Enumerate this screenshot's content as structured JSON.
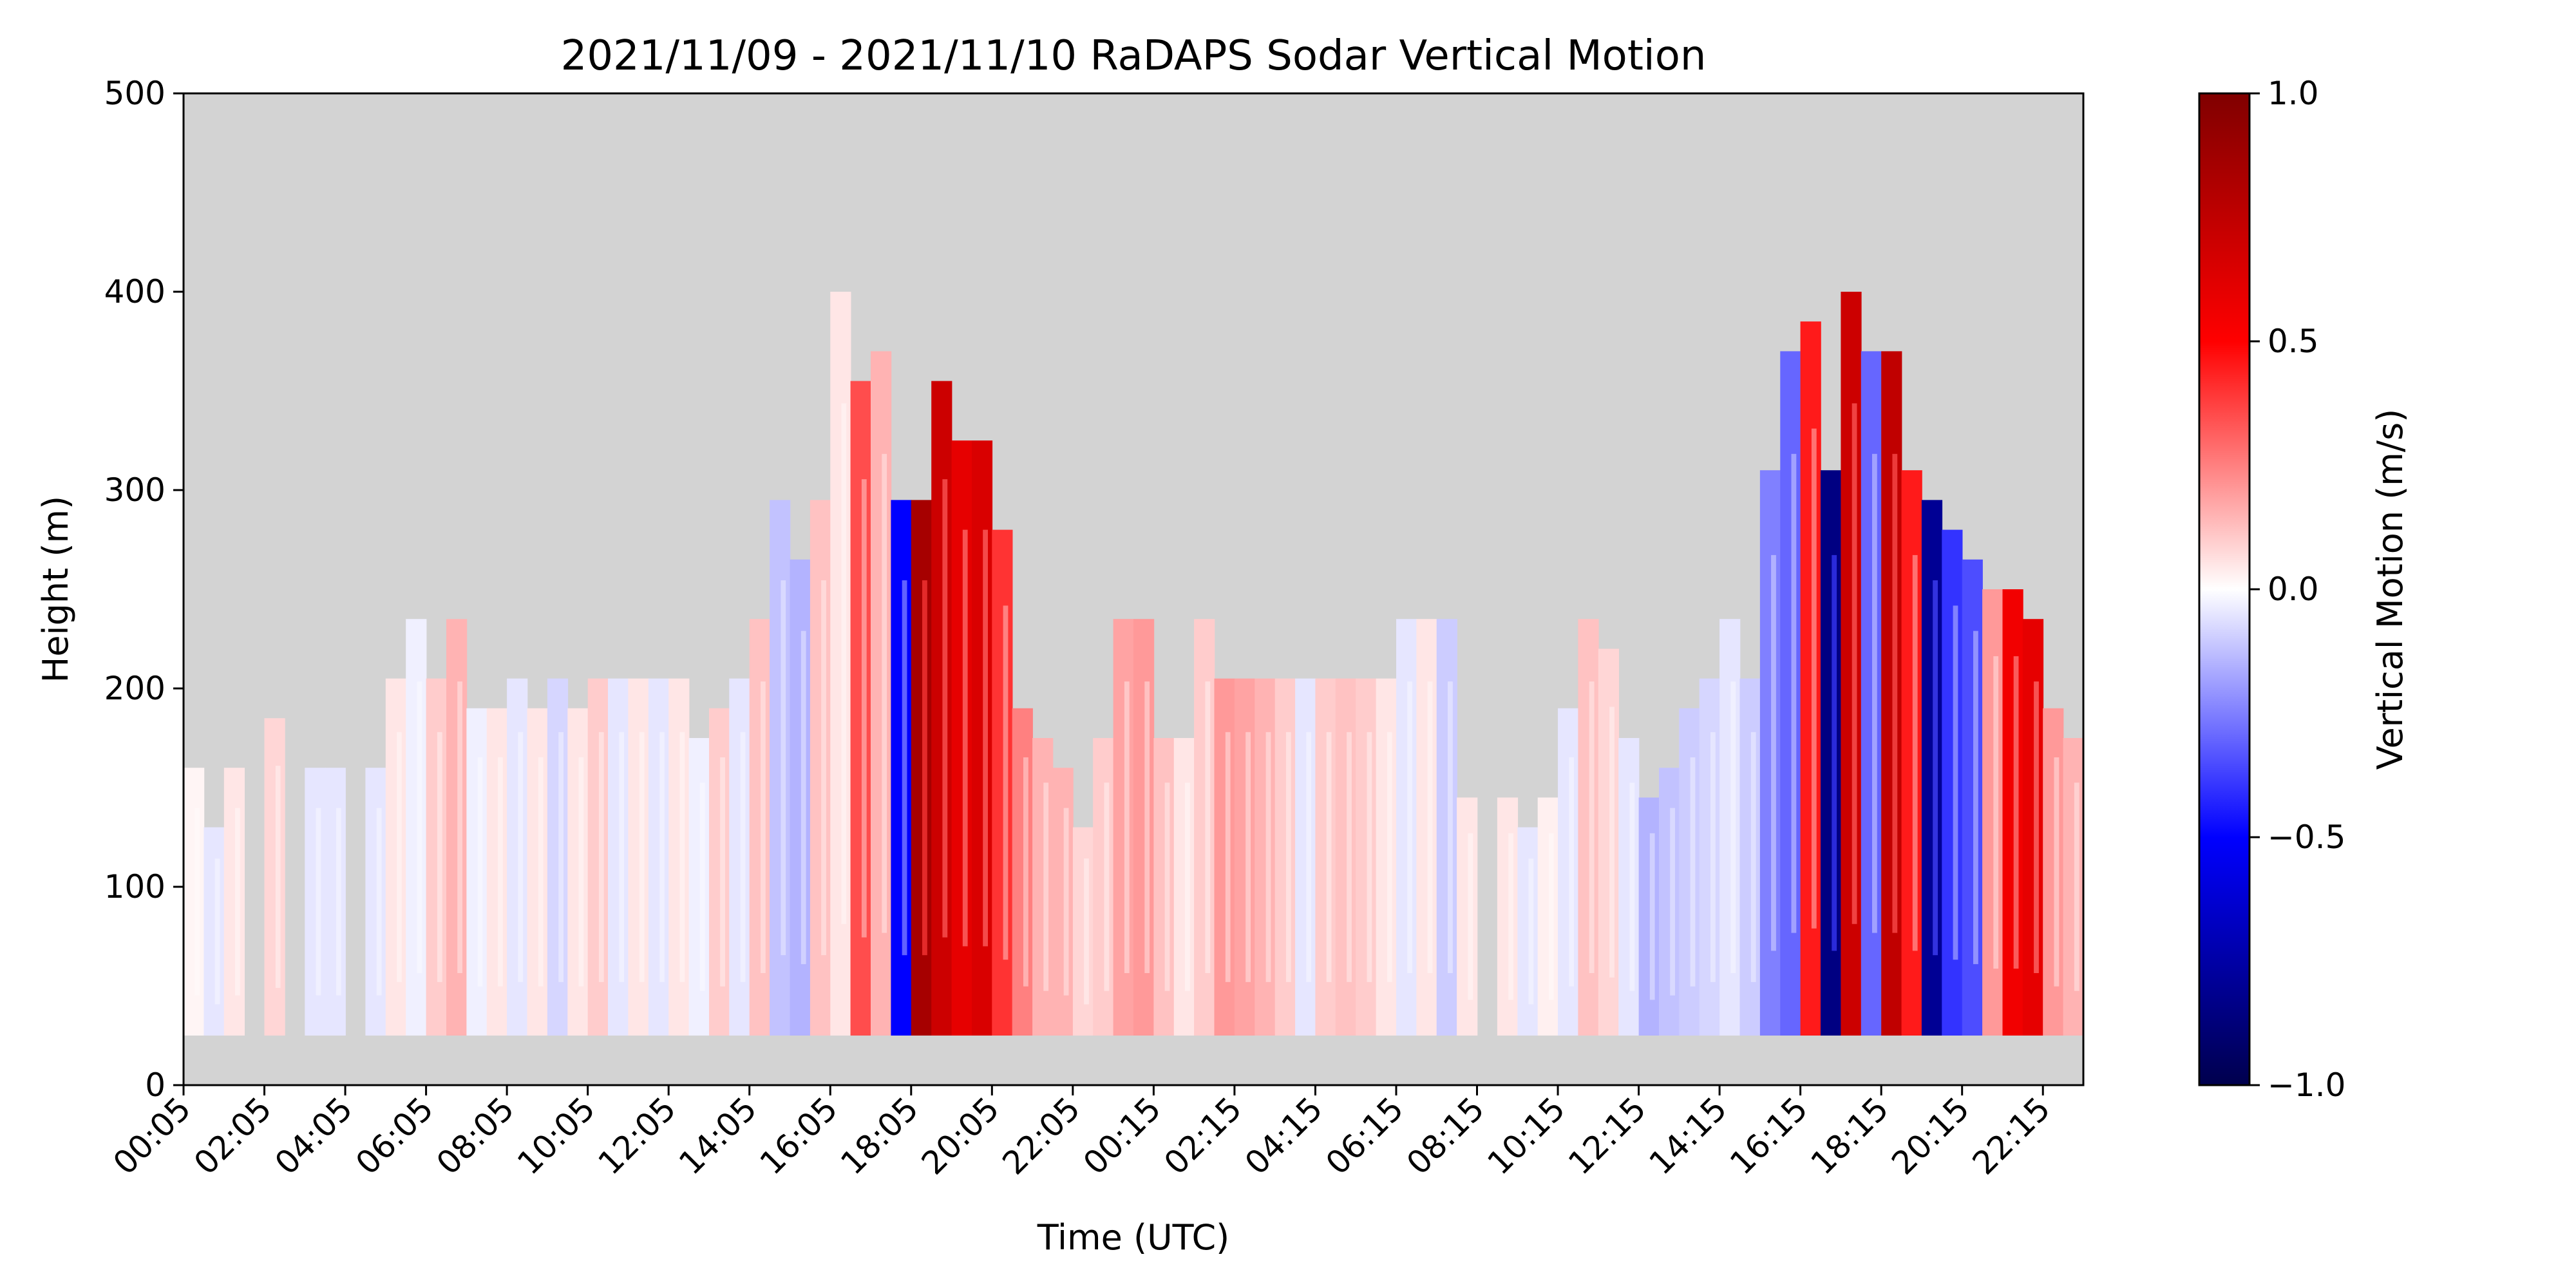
{
  "chart_data": {
    "type": "heatmap",
    "title": "2021/11/09 - 2021/11/10 RaDAPS Sodar Vertical Motion",
    "xlabel": "Time (UTC)",
    "ylabel": "Height (m)",
    "x_tick_labels": [
      "00:05",
      "02:05",
      "04:05",
      "06:05",
      "08:05",
      "10:05",
      "12:05",
      "14:05",
      "16:05",
      "18:05",
      "20:05",
      "22:05",
      "00:15",
      "02:15",
      "04:15",
      "06:15",
      "08:15",
      "10:15",
      "12:15",
      "14:15",
      "16:15",
      "18:15",
      "20:15",
      "22:15"
    ],
    "y_ticks": [
      0,
      100,
      200,
      300,
      400,
      500
    ],
    "ylim": [
      0,
      500
    ],
    "missing_data_color": "#d3d3d3",
    "colorbar": {
      "label": "Vertical Motion (m/s)",
      "colormap": "seismic",
      "ticks": [
        1.0,
        0.5,
        0.0,
        -0.5,
        -1.0
      ],
      "tick_labels": [
        "1.0",
        "0.5",
        "0.0",
        "−0.5",
        "−1.0"
      ],
      "range": [
        -1.0,
        1.0
      ],
      "colors": {
        "max": "#800000",
        "positive": "#ff0000",
        "zero": "#ffffff",
        "negative": "#0000ff",
        "min": "#00004d"
      }
    },
    "data_bottom_height": 25,
    "columns": [
      {
        "hour": 0.0,
        "top": 160,
        "w": 0.02
      },
      {
        "hour": 0.5,
        "top": 130,
        "w": -0.05
      },
      {
        "hour": 1.0,
        "top": 160,
        "w": 0.05
      },
      {
        "hour": 1.5,
        "top": null,
        "w": null
      },
      {
        "hour": 2.0,
        "top": 185,
        "w": 0.08
      },
      {
        "hour": 2.5,
        "top": null,
        "w": null
      },
      {
        "hour": 3.0,
        "top": 160,
        "w": -0.05
      },
      {
        "hour": 3.5,
        "top": 160,
        "w": -0.05
      },
      {
        "hour": 4.0,
        "top": null,
        "w": null
      },
      {
        "hour": 4.5,
        "top": 160,
        "w": -0.05
      },
      {
        "hour": 5.0,
        "top": 205,
        "w": 0.05
      },
      {
        "hour": 5.5,
        "top": 235,
        "w": -0.03
      },
      {
        "hour": 6.0,
        "top": 205,
        "w": 0.1
      },
      {
        "hour": 6.5,
        "top": 235,
        "w": 0.15
      },
      {
        "hour": 7.0,
        "top": 190,
        "w": -0.03
      },
      {
        "hour": 7.5,
        "top": 190,
        "w": 0.05
      },
      {
        "hour": 8.0,
        "top": 205,
        "w": -0.05
      },
      {
        "hour": 8.5,
        "top": 190,
        "w": 0.05
      },
      {
        "hour": 9.0,
        "top": 205,
        "w": -0.08
      },
      {
        "hour": 9.5,
        "top": 190,
        "w": 0.05
      },
      {
        "hour": 10.0,
        "top": 205,
        "w": 0.1
      },
      {
        "hour": 10.5,
        "top": 205,
        "w": -0.05
      },
      {
        "hour": 11.0,
        "top": 205,
        "w": 0.05
      },
      {
        "hour": 11.5,
        "top": 205,
        "w": -0.05
      },
      {
        "hour": 12.0,
        "top": 205,
        "w": 0.05
      },
      {
        "hour": 12.5,
        "top": 175,
        "w": -0.03
      },
      {
        "hour": 13.0,
        "top": 190,
        "w": 0.1
      },
      {
        "hour": 13.5,
        "top": 205,
        "w": -0.05
      },
      {
        "hour": 14.0,
        "top": 235,
        "w": 0.12
      },
      {
        "hour": 14.5,
        "top": 295,
        "w": -0.12
      },
      {
        "hour": 15.0,
        "top": 265,
        "w": -0.15
      },
      {
        "hour": 15.5,
        "top": 295,
        "w": 0.12
      },
      {
        "hour": 16.0,
        "top": 400,
        "w": 0.05
      },
      {
        "hour": 16.5,
        "top": 355,
        "w": 0.35
      },
      {
        "hour": 17.0,
        "top": 370,
        "w": 0.15
      },
      {
        "hour": 17.5,
        "top": 295,
        "w": -0.5
      },
      {
        "hour": 18.0,
        "top": 295,
        "w": 0.85
      },
      {
        "hour": 18.5,
        "top": 355,
        "w": 0.7
      },
      {
        "hour": 19.0,
        "top": 325,
        "w": 0.6
      },
      {
        "hour": 19.5,
        "top": 325,
        "w": 0.65
      },
      {
        "hour": 20.0,
        "top": 280,
        "w": 0.4
      },
      {
        "hour": 20.5,
        "top": 190,
        "w": 0.25
      },
      {
        "hour": 21.0,
        "top": 175,
        "w": 0.15
      },
      {
        "hour": 21.5,
        "top": 160,
        "w": 0.15
      },
      {
        "hour": 22.0,
        "top": 130,
        "w": 0.08
      },
      {
        "hour": 22.5,
        "top": 175,
        "w": 0.1
      },
      {
        "hour": 23.0,
        "top": 235,
        "w": 0.18
      },
      {
        "hour": 23.5,
        "top": 235,
        "w": 0.2
      },
      {
        "hour": 24.0,
        "top": 175,
        "w": 0.12
      },
      {
        "hour": 24.5,
        "top": 175,
        "w": 0.05
      },
      {
        "hour": 25.0,
        "top": 235,
        "w": 0.1
      },
      {
        "hour": 25.5,
        "top": 205,
        "w": 0.2
      },
      {
        "hour": 26.0,
        "top": 205,
        "w": 0.18
      },
      {
        "hour": 26.5,
        "top": 205,
        "w": 0.15
      },
      {
        "hour": 27.0,
        "top": 205,
        "w": 0.1
      },
      {
        "hour": 27.5,
        "top": 205,
        "w": -0.05
      },
      {
        "hour": 28.0,
        "top": 205,
        "w": 0.1
      },
      {
        "hour": 28.5,
        "top": 205,
        "w": 0.12
      },
      {
        "hour": 29.0,
        "top": 205,
        "w": 0.1
      },
      {
        "hour": 29.5,
        "top": 205,
        "w": 0.05
      },
      {
        "hour": 30.0,
        "top": 235,
        "w": -0.05
      },
      {
        "hour": 30.5,
        "top": 235,
        "w": 0.05
      },
      {
        "hour": 31.0,
        "top": 235,
        "w": -0.1
      },
      {
        "hour": 31.5,
        "top": 145,
        "w": 0.05
      },
      {
        "hour": 32.0,
        "top": null,
        "w": null
      },
      {
        "hour": 32.5,
        "top": 145,
        "w": 0.05
      },
      {
        "hour": 33.0,
        "top": 130,
        "w": -0.05
      },
      {
        "hour": 33.5,
        "top": 145,
        "w": 0.03
      },
      {
        "hour": 34.0,
        "top": 190,
        "w": -0.05
      },
      {
        "hour": 34.5,
        "top": 235,
        "w": 0.12
      },
      {
        "hour": 35.0,
        "top": 220,
        "w": 0.08
      },
      {
        "hour": 35.5,
        "top": 175,
        "w": -0.05
      },
      {
        "hour": 36.0,
        "top": 145,
        "w": -0.15
      },
      {
        "hour": 36.5,
        "top": 160,
        "w": -0.12
      },
      {
        "hour": 37.0,
        "top": 190,
        "w": -0.1
      },
      {
        "hour": 37.5,
        "top": 205,
        "w": -0.08
      },
      {
        "hour": 38.0,
        "top": 235,
        "w": -0.05
      },
      {
        "hour": 38.5,
        "top": 205,
        "w": -0.1
      },
      {
        "hour": 39.0,
        "top": 310,
        "w": -0.25
      },
      {
        "hour": 39.5,
        "top": 370,
        "w": -0.3
      },
      {
        "hour": 40.0,
        "top": 385,
        "w": 0.45
      },
      {
        "hour": 40.5,
        "top": 310,
        "w": -0.85
      },
      {
        "hour": 41.0,
        "top": 400,
        "w": 0.7
      },
      {
        "hour": 41.5,
        "top": 370,
        "w": -0.3
      },
      {
        "hour": 42.0,
        "top": 370,
        "w": 0.75
      },
      {
        "hour": 42.5,
        "top": 310,
        "w": 0.45
      },
      {
        "hour": 43.0,
        "top": 295,
        "w": -0.8
      },
      {
        "hour": 43.5,
        "top": 280,
        "w": -0.4
      },
      {
        "hour": 44.0,
        "top": 265,
        "w": -0.35
      },
      {
        "hour": 44.5,
        "top": 250,
        "w": 0.2
      },
      {
        "hour": 45.0,
        "top": 250,
        "w": 0.55
      },
      {
        "hour": 45.5,
        "top": 235,
        "w": 0.6
      },
      {
        "hour": 46.0,
        "top": 190,
        "w": 0.2
      },
      {
        "hour": 46.5,
        "top": 175,
        "w": 0.15
      }
    ]
  }
}
